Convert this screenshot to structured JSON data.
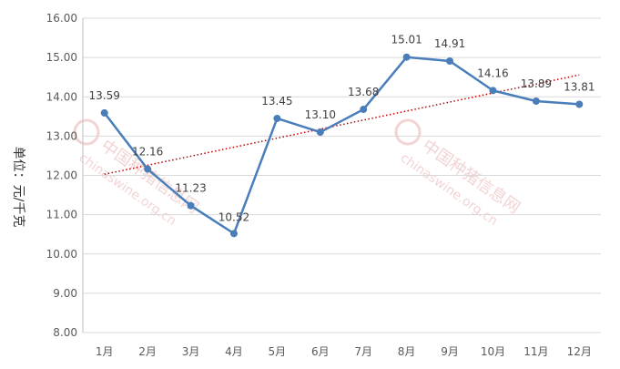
{
  "chart_data": {
    "type": "line",
    "categories": [
      "1月",
      "2月",
      "3月",
      "4月",
      "5月",
      "6月",
      "7月",
      "8月",
      "9月",
      "10月",
      "11月",
      "12月"
    ],
    "series": [
      {
        "values": [
          13.59,
          12.16,
          11.23,
          10.52,
          13.45,
          13.1,
          13.68,
          15.01,
          14.91,
          14.16,
          13.89,
          13.81
        ],
        "labels": [
          "13.59",
          "12.16",
          "11.23",
          "10.52",
          "13.45",
          "13.10",
          "13.68",
          "15.01",
          "14.91",
          "14.16",
          "13.89",
          "13.81"
        ],
        "color": "#4a7ebb"
      }
    ],
    "trendline": {
      "type": "linear",
      "color": "#c00000",
      "style": "dotted"
    },
    "ylabel": "单位：元/千克",
    "ylim": [
      8.0,
      16.0
    ],
    "yticks": [
      "8.00",
      "9.00",
      "10.00",
      "11.00",
      "12.00",
      "13.00",
      "14.00",
      "15.00",
      "16.00"
    ],
    "grid": true,
    "legend": "none"
  },
  "watermark": {
    "cn": "中国种猪信息网",
    "url": "chinaswine.org.cn",
    "color": "#d98080"
  }
}
